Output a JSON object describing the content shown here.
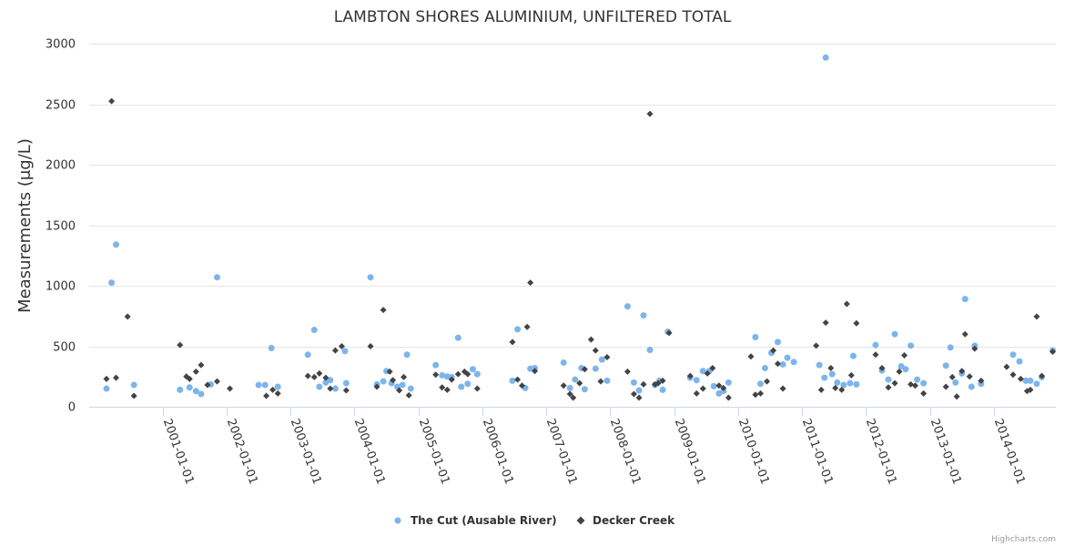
{
  "chart_data": {
    "type": "scatter",
    "title": "LAMBTON SHORES ALUMINIUM, UNFILTERED TOTAL",
    "xlabel": "",
    "ylabel": "Measurements (μg/L)",
    "ylim": [
      0,
      3000
    ],
    "yticks": [
      0,
      500,
      1000,
      1500,
      2000,
      2500,
      3000
    ],
    "xlim": [
      1999.85,
      2014.97
    ],
    "xticks": [
      {
        "value": 2001.0,
        "label": "2001-01-01"
      },
      {
        "value": 2002.0,
        "label": "2002-01-01"
      },
      {
        "value": 2003.0,
        "label": "2003-01-01"
      },
      {
        "value": 2004.0,
        "label": "2004-01-01"
      },
      {
        "value": 2005.0,
        "label": "2005-01-01"
      },
      {
        "value": 2006.0,
        "label": "2006-01-01"
      },
      {
        "value": 2007.0,
        "label": "2007-01-01"
      },
      {
        "value": 2008.0,
        "label": "2008-01-01"
      },
      {
        "value": 2009.0,
        "label": "2009-01-01"
      },
      {
        "value": 2010.0,
        "label": "2010-01-01"
      },
      {
        "value": 2011.0,
        "label": "2011-01-01"
      },
      {
        "value": 2012.0,
        "label": "2012-01-01"
      },
      {
        "value": 2013.0,
        "label": "2013-01-01"
      },
      {
        "value": 2014.0,
        "label": "2014-01-01"
      }
    ],
    "grid": true,
    "legend_position": "bottom-center",
    "series": [
      {
        "name": "The Cut (Ausable River)",
        "marker": "circle",
        "color": "#7cb5ec",
        "points": [
          [
            2000.12,
            150
          ],
          [
            2000.2,
            1025
          ],
          [
            2000.27,
            1340
          ],
          [
            2000.55,
            180
          ],
          [
            2001.27,
            140
          ],
          [
            2001.42,
            160
          ],
          [
            2001.52,
            130
          ],
          [
            2001.6,
            105
          ],
          [
            2001.75,
            185
          ],
          [
            2001.85,
            1070
          ],
          [
            2002.5,
            180
          ],
          [
            2002.6,
            180
          ],
          [
            2002.7,
            485
          ],
          [
            2002.8,
            165
          ],
          [
            2003.27,
            430
          ],
          [
            2003.37,
            635
          ],
          [
            2003.45,
            165
          ],
          [
            2003.55,
            200
          ],
          [
            2003.62,
            220
          ],
          [
            2003.7,
            150
          ],
          [
            2003.85,
            460
          ],
          [
            2003.87,
            195
          ],
          [
            2004.25,
            1070
          ],
          [
            2004.35,
            185
          ],
          [
            2004.45,
            210
          ],
          [
            2004.5,
            295
          ],
          [
            2004.58,
            195
          ],
          [
            2004.67,
            165
          ],
          [
            2004.75,
            180
          ],
          [
            2004.82,
            430
          ],
          [
            2004.88,
            150
          ],
          [
            2005.27,
            345
          ],
          [
            2005.37,
            260
          ],
          [
            2005.45,
            250
          ],
          [
            2005.52,
            245
          ],
          [
            2005.62,
            570
          ],
          [
            2005.67,
            165
          ],
          [
            2005.77,
            190
          ],
          [
            2005.85,
            310
          ],
          [
            2005.92,
            270
          ],
          [
            2006.47,
            215
          ],
          [
            2006.55,
            640
          ],
          [
            2006.67,
            155
          ],
          [
            2006.75,
            315
          ],
          [
            2006.82,
            320
          ],
          [
            2007.27,
            365
          ],
          [
            2007.37,
            155
          ],
          [
            2007.45,
            225
          ],
          [
            2007.55,
            320
          ],
          [
            2007.6,
            145
          ],
          [
            2007.77,
            315
          ],
          [
            2007.87,
            390
          ],
          [
            2007.95,
            215
          ],
          [
            2008.27,
            830
          ],
          [
            2008.37,
            200
          ],
          [
            2008.45,
            135
          ],
          [
            2008.52,
            755
          ],
          [
            2008.62,
            470
          ],
          [
            2008.7,
            180
          ],
          [
            2008.77,
            215
          ],
          [
            2008.82,
            140
          ],
          [
            2008.9,
            620
          ],
          [
            2009.25,
            240
          ],
          [
            2009.35,
            220
          ],
          [
            2009.45,
            295
          ],
          [
            2009.55,
            295
          ],
          [
            2009.62,
            170
          ],
          [
            2009.7,
            110
          ],
          [
            2009.77,
            130
          ],
          [
            2009.85,
            200
          ],
          [
            2010.27,
            575
          ],
          [
            2010.35,
            190
          ],
          [
            2010.42,
            320
          ],
          [
            2010.52,
            445
          ],
          [
            2010.62,
            535
          ],
          [
            2010.7,
            350
          ],
          [
            2010.77,
            405
          ],
          [
            2010.87,
            370
          ],
          [
            2011.27,
            345
          ],
          [
            2011.35,
            240
          ],
          [
            2011.37,
            2885
          ],
          [
            2011.47,
            270
          ],
          [
            2011.55,
            200
          ],
          [
            2011.65,
            180
          ],
          [
            2011.75,
            195
          ],
          [
            2011.8,
            420
          ],
          [
            2011.85,
            185
          ],
          [
            2012.15,
            510
          ],
          [
            2012.25,
            300
          ],
          [
            2012.35,
            225
          ],
          [
            2012.45,
            600
          ],
          [
            2012.55,
            335
          ],
          [
            2012.62,
            310
          ],
          [
            2012.7,
            505
          ],
          [
            2012.8,
            225
          ],
          [
            2012.9,
            195
          ],
          [
            2013.25,
            340
          ],
          [
            2013.32,
            490
          ],
          [
            2013.4,
            200
          ],
          [
            2013.5,
            275
          ],
          [
            2013.55,
            890
          ],
          [
            2013.65,
            165
          ],
          [
            2013.7,
            505
          ],
          [
            2013.8,
            190
          ],
          [
            2014.3,
            430
          ],
          [
            2014.4,
            375
          ],
          [
            2014.5,
            215
          ],
          [
            2014.57,
            215
          ],
          [
            2014.67,
            190
          ],
          [
            2014.75,
            245
          ],
          [
            2014.92,
            465
          ]
        ]
      },
      {
        "name": "Decker Creek",
        "marker": "diamond",
        "color": "#434348",
        "points": [
          [
            2000.12,
            230
          ],
          [
            2000.2,
            2525
          ],
          [
            2000.27,
            240
          ],
          [
            2000.45,
            745
          ],
          [
            2000.55,
            90
          ],
          [
            2001.27,
            510
          ],
          [
            2001.37,
            250
          ],
          [
            2001.42,
            230
          ],
          [
            2001.52,
            290
          ],
          [
            2001.6,
            345
          ],
          [
            2001.7,
            180
          ],
          [
            2001.85,
            210
          ],
          [
            2002.05,
            150
          ],
          [
            2002.62,
            90
          ],
          [
            2002.72,
            140
          ],
          [
            2002.8,
            110
          ],
          [
            2003.27,
            255
          ],
          [
            2003.37,
            245
          ],
          [
            2003.45,
            275
          ],
          [
            2003.55,
            240
          ],
          [
            2003.62,
            150
          ],
          [
            2003.7,
            465
          ],
          [
            2003.8,
            500
          ],
          [
            2003.87,
            135
          ],
          [
            2004.25,
            500
          ],
          [
            2004.35,
            165
          ],
          [
            2004.45,
            800
          ],
          [
            2004.55,
            290
          ],
          [
            2004.6,
            220
          ],
          [
            2004.7,
            135
          ],
          [
            2004.77,
            245
          ],
          [
            2004.85,
            95
          ],
          [
            2005.27,
            265
          ],
          [
            2005.37,
            160
          ],
          [
            2005.45,
            140
          ],
          [
            2005.52,
            225
          ],
          [
            2005.62,
            270
          ],
          [
            2005.72,
            290
          ],
          [
            2005.77,
            270
          ],
          [
            2005.92,
            150
          ],
          [
            2006.47,
            535
          ],
          [
            2006.55,
            225
          ],
          [
            2006.62,
            175
          ],
          [
            2006.7,
            660
          ],
          [
            2006.75,
            1025
          ],
          [
            2006.82,
            295
          ],
          [
            2007.27,
            175
          ],
          [
            2007.37,
            105
          ],
          [
            2007.42,
            75
          ],
          [
            2007.52,
            195
          ],
          [
            2007.6,
            310
          ],
          [
            2007.7,
            555
          ],
          [
            2007.77,
            465
          ],
          [
            2007.85,
            210
          ],
          [
            2007.95,
            410
          ],
          [
            2008.27,
            290
          ],
          [
            2008.37,
            105
          ],
          [
            2008.45,
            75
          ],
          [
            2008.52,
            185
          ],
          [
            2008.62,
            2420
          ],
          [
            2008.7,
            185
          ],
          [
            2008.75,
            195
          ],
          [
            2008.82,
            215
          ],
          [
            2008.92,
            610
          ],
          [
            2009.25,
            255
          ],
          [
            2009.35,
            110
          ],
          [
            2009.45,
            150
          ],
          [
            2009.52,
            275
          ],
          [
            2009.6,
            320
          ],
          [
            2009.7,
            175
          ],
          [
            2009.77,
            155
          ],
          [
            2009.85,
            75
          ],
          [
            2010.2,
            415
          ],
          [
            2010.27,
            100
          ],
          [
            2010.35,
            110
          ],
          [
            2010.45,
            210
          ],
          [
            2010.55,
            465
          ],
          [
            2010.62,
            355
          ],
          [
            2010.7,
            150
          ],
          [
            2011.22,
            505
          ],
          [
            2011.3,
            140
          ],
          [
            2011.37,
            695
          ],
          [
            2011.45,
            320
          ],
          [
            2011.52,
            155
          ],
          [
            2011.62,
            140
          ],
          [
            2011.7,
            850
          ],
          [
            2011.77,
            260
          ],
          [
            2011.85,
            690
          ],
          [
            2012.15,
            430
          ],
          [
            2012.25,
            320
          ],
          [
            2012.35,
            160
          ],
          [
            2012.45,
            195
          ],
          [
            2012.52,
            290
          ],
          [
            2012.6,
            425
          ],
          [
            2012.7,
            185
          ],
          [
            2012.77,
            175
          ],
          [
            2012.9,
            110
          ],
          [
            2013.25,
            165
          ],
          [
            2013.35,
            245
          ],
          [
            2013.42,
            85
          ],
          [
            2013.5,
            295
          ],
          [
            2013.55,
            600
          ],
          [
            2013.62,
            250
          ],
          [
            2013.7,
            480
          ],
          [
            2013.8,
            215
          ],
          [
            2014.2,
            330
          ],
          [
            2014.3,
            265
          ],
          [
            2014.42,
            230
          ],
          [
            2014.52,
            130
          ],
          [
            2014.57,
            140
          ],
          [
            2014.67,
            745
          ],
          [
            2014.75,
            255
          ],
          [
            2014.92,
            455
          ]
        ]
      }
    ],
    "credits": "Highcharts.com"
  }
}
